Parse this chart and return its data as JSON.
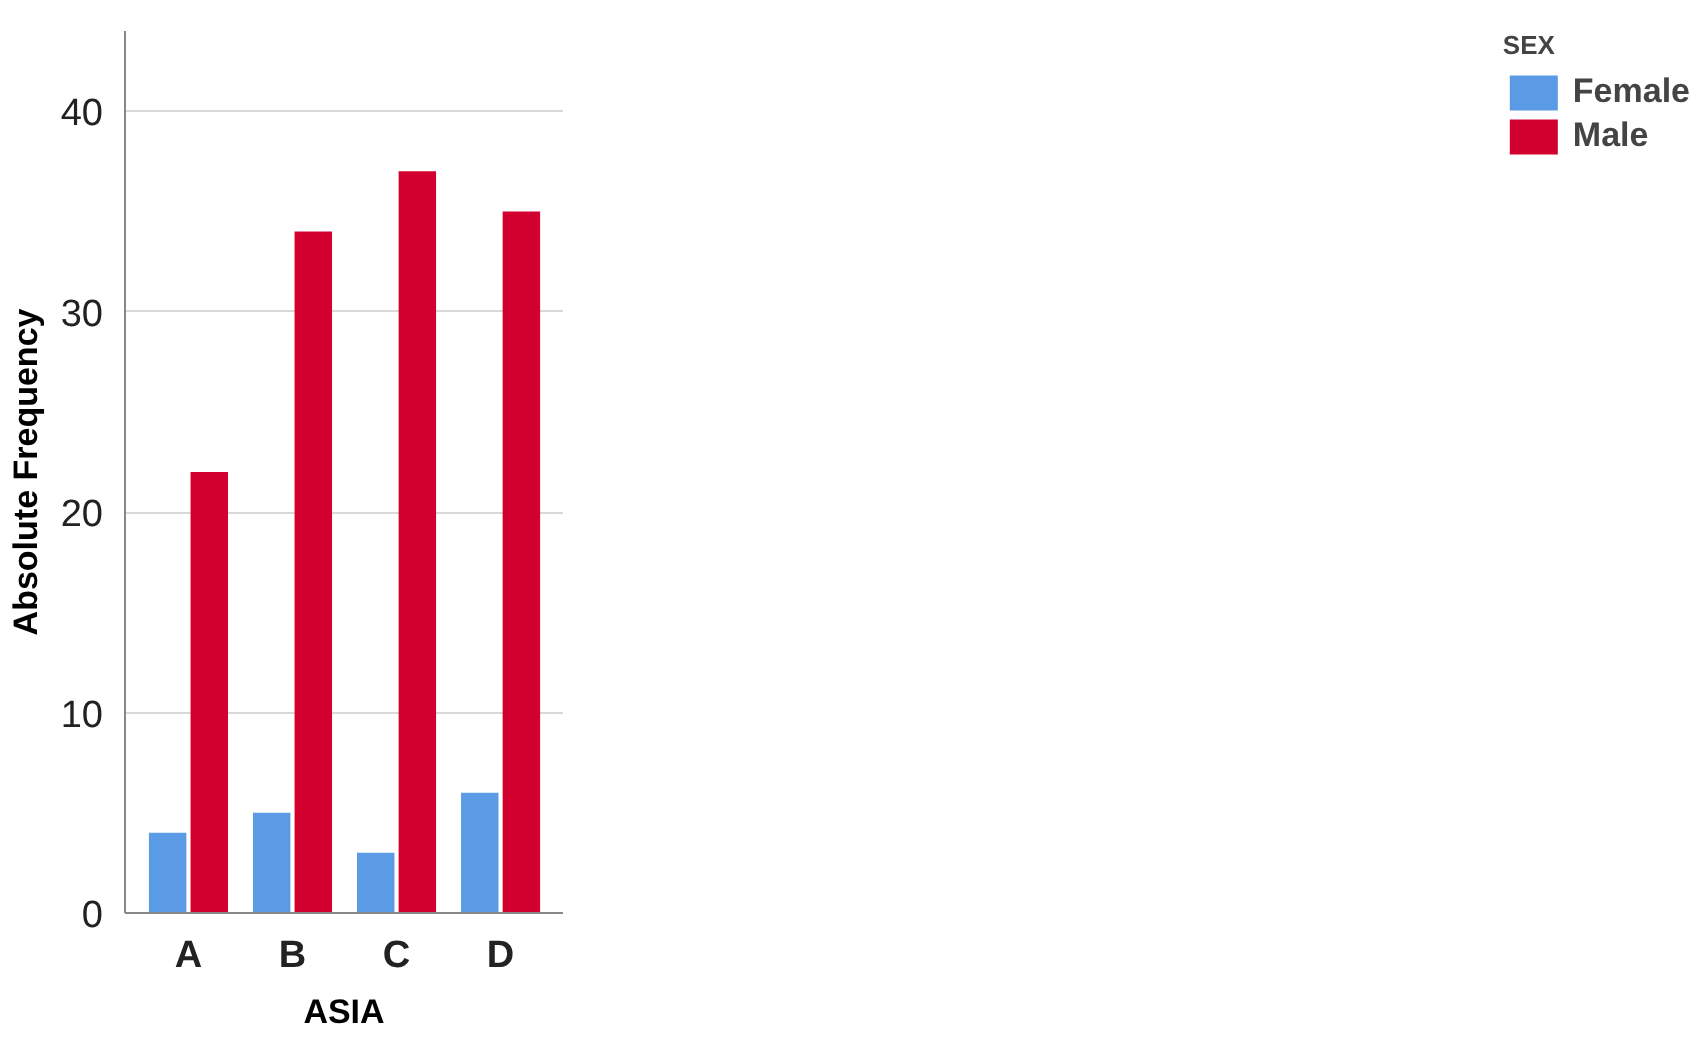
{
  "chart_data": {
    "type": "bar",
    "xlabel": "ASIA",
    "ylabel": "Absolute Frequency",
    "legend_title": "SEX",
    "categories": [
      "A",
      "B",
      "C",
      "D"
    ],
    "series": [
      {
        "name": "Female",
        "color": "#5b9be6",
        "values": [
          4,
          5,
          3,
          6
        ]
      },
      {
        "name": "Male",
        "color": "#d1002f",
        "values": [
          22,
          34,
          37,
          35
        ]
      }
    ],
    "ylim": [
      0,
      44
    ],
    "yticks": [
      0,
      10,
      20,
      30,
      40
    ],
    "grid": "y",
    "legend": "top right"
  }
}
